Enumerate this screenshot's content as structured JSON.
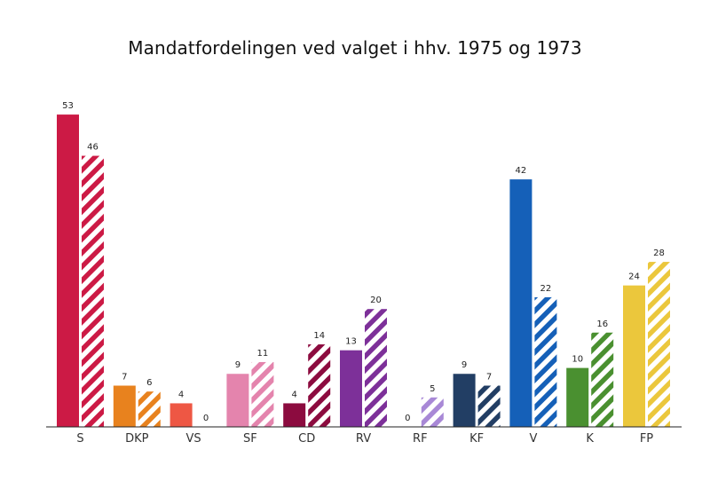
{
  "chart_data": {
    "type": "bar",
    "title": "Mandatfordelingen ved valget i hhv. 1975 og 1973",
    "xlabel": "",
    "ylabel": "",
    "ylim": [
      0,
      55
    ],
    "grid": false,
    "legend": "none",
    "categories": [
      "S",
      "DKP",
      "VS",
      "SF",
      "CD",
      "RV",
      "RF",
      "KF",
      "V",
      "K",
      "FP"
    ],
    "colors": [
      "#cc1a45",
      "#e8821e",
      "#ee5744",
      "#e484ad",
      "#8c0b3f",
      "#7d3099",
      "#a888d6",
      "#223e64",
      "#1560b8",
      "#4a9030",
      "#ebc73c"
    ],
    "series": [
      {
        "pattern": "solid",
        "values": [
          53,
          7,
          4,
          9,
          4,
          13,
          0,
          9,
          42,
          10,
          24
        ]
      },
      {
        "pattern": "hatched",
        "values": [
          46,
          6,
          0,
          11,
          14,
          20,
          5,
          7,
          22,
          16,
          28
        ]
      }
    ]
  }
}
